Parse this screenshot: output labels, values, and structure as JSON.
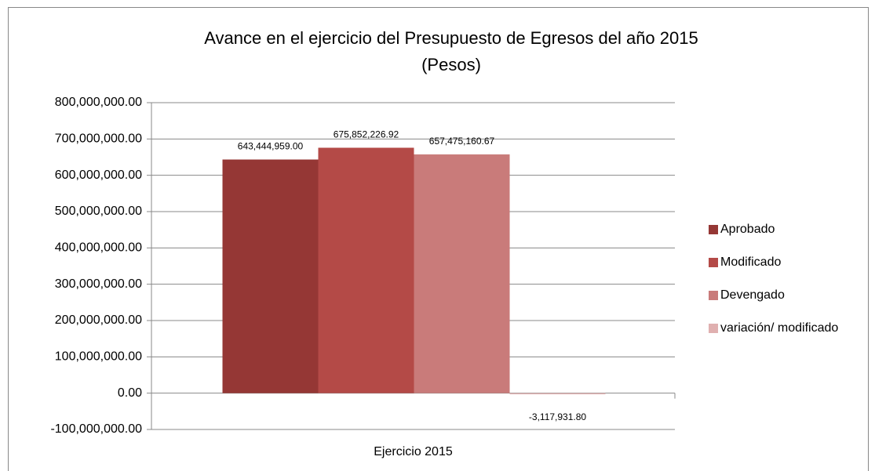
{
  "chart_data": {
    "type": "bar",
    "title": "Avance en el ejercicio del Presupuesto de Egresos del año 2015",
    "subtitle": "(Pesos)",
    "categories": [
      "Ejercicio 2015"
    ],
    "series": [
      {
        "name": "Aprobado",
        "color": "#953735",
        "values": [
          643444959.0
        ],
        "value_labels": [
          "643,444,959.00"
        ]
      },
      {
        "name": "Modificado",
        "color": "#b44a47",
        "values": [
          675852226.92
        ],
        "value_labels": [
          "675,852,226.92"
        ]
      },
      {
        "name": "Devengado",
        "color": "#c97b7a",
        "values": [
          657475160.67
        ],
        "value_labels": [
          "657,475,160.67"
        ]
      },
      {
        "name": "variación/ modificado",
        "color": "#e0b0b0",
        "values": [
          -3117931.8
        ],
        "value_labels": [
          "-3,117,931.80"
        ]
      }
    ],
    "ylim": [
      -100000000,
      800000000
    ],
    "yticks": [
      {
        "value": -100000000,
        "label": "-100,000,000.00"
      },
      {
        "value": 0,
        "label": "0.00"
      },
      {
        "value": 100000000,
        "label": "100,000,000.00"
      },
      {
        "value": 200000000,
        "label": "200,000,000.00"
      },
      {
        "value": 300000000,
        "label": "300,000,000.00"
      },
      {
        "value": 400000000,
        "label": "400,000,000.00"
      },
      {
        "value": 500000000,
        "label": "500,000,000.00"
      },
      {
        "value": 600000000,
        "label": "600,000,000.00"
      },
      {
        "value": 700000000,
        "label": "700,000,000.00"
      },
      {
        "value": 800000000,
        "label": "800,000,000.00"
      }
    ],
    "grid": true,
    "legend": "right"
  }
}
